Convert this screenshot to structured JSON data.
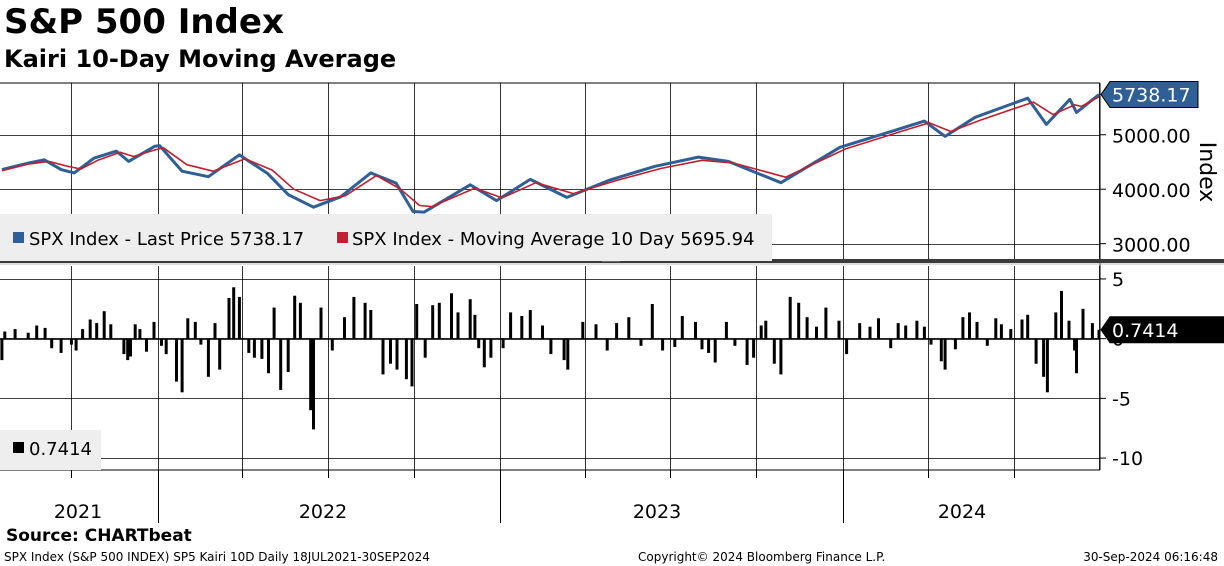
{
  "title": "S&P 500 Index",
  "subtitle": "Kairi 10-Day Moving Average",
  "source": "Source: CHARTbeat",
  "footer": {
    "left": "SPX Index (S&P 500 INDEX) SP5 Kairi 10D  Daily 18JUL2021-30SEP2024",
    "middle": "Copyright© 2024 Bloomberg Finance L.P.",
    "right": "30-Sep-2024 06:16:48"
  },
  "colors": {
    "last_price": "#2e5f96",
    "moving_average": "#c21f2f",
    "kairi": "#000000",
    "grid": "#000000",
    "legend_bg": "#eeeeee"
  },
  "chart_data": [
    {
      "type": "line",
      "panel": "price",
      "ylabel": "Index",
      "ylim": [
        2700,
        5950
      ],
      "yticks": [
        3000,
        4000,
        5000
      ],
      "ytick_labels": [
        "3000.00",
        "4000.00",
        "5000.00"
      ],
      "last_value_label": "5738.17",
      "legend": [
        "SPX Index - Last Price 5738.17",
        "SPX Index - Moving Average 10 Day 5695.94"
      ],
      "x_range": [
        "2021-07-18",
        "2024-09-30"
      ],
      "x_year_labels": [
        "2021",
        "2022",
        "2023",
        "2024"
      ],
      "series": [
        {
          "name": "SPX Index - Last Price",
          "points": [
            [
              "2021-07-19",
              4360
            ],
            [
              "2021-08-16",
              4480
            ],
            [
              "2021-09-02",
              4540
            ],
            [
              "2021-09-20",
              4360
            ],
            [
              "2021-10-04",
              4300
            ],
            [
              "2021-10-25",
              4570
            ],
            [
              "2021-11-18",
              4700
            ],
            [
              "2021-12-01",
              4510
            ],
            [
              "2021-12-29",
              4790
            ],
            [
              "2022-01-03",
              4800
            ],
            [
              "2022-01-27",
              4330
            ],
            [
              "2022-02-24",
              4230
            ],
            [
              "2022-03-29",
              4630
            ],
            [
              "2022-04-28",
              4290
            ],
            [
              "2022-05-20",
              3900
            ],
            [
              "2022-06-16",
              3670
            ],
            [
              "2022-07-15",
              3860
            ],
            [
              "2022-08-16",
              4300
            ],
            [
              "2022-09-12",
              4110
            ],
            [
              "2022-09-30",
              3590
            ],
            [
              "2022-10-12",
              3580
            ],
            [
              "2022-11-30",
              4080
            ],
            [
              "2022-12-28",
              3790
            ],
            [
              "2023-02-02",
              4180
            ],
            [
              "2023-03-13",
              3850
            ],
            [
              "2023-04-28",
              4170
            ],
            [
              "2023-06-15",
              4420
            ],
            [
              "2023-07-31",
              4590
            ],
            [
              "2023-09-01",
              4510
            ],
            [
              "2023-10-27",
              4120
            ],
            [
              "2023-12-29",
              4770
            ],
            [
              "2024-02-29",
              5100
            ],
            [
              "2024-03-28",
              5250
            ],
            [
              "2024-04-19",
              4970
            ],
            [
              "2024-05-21",
              5320
            ],
            [
              "2024-07-16",
              5670
            ],
            [
              "2024-08-05",
              5190
            ],
            [
              "2024-08-30",
              5650
            ],
            [
              "2024-09-06",
              5410
            ],
            [
              "2024-09-30",
              5738.17
            ]
          ]
        },
        {
          "name": "SPX Index - Moving Average 10 Day",
          "points": [
            [
              "2021-07-19",
              4340
            ],
            [
              "2021-08-16",
              4460
            ],
            [
              "2021-09-07",
              4510
            ],
            [
              "2021-09-27",
              4420
            ],
            [
              "2021-10-11",
              4370
            ],
            [
              "2021-10-29",
              4530
            ],
            [
              "2021-11-22",
              4680
            ],
            [
              "2021-12-06",
              4600
            ],
            [
              "2021-12-31",
              4730
            ],
            [
              "2022-01-07",
              4760
            ],
            [
              "2022-02-01",
              4450
            ],
            [
              "2022-03-01",
              4330
            ],
            [
              "2022-04-04",
              4560
            ],
            [
              "2022-05-03",
              4350
            ],
            [
              "2022-05-26",
              4000
            ],
            [
              "2022-06-23",
              3790
            ],
            [
              "2022-07-20",
              3880
            ],
            [
              "2022-08-22",
              4250
            ],
            [
              "2022-09-16",
              4010
            ],
            [
              "2022-10-07",
              3700
            ],
            [
              "2022-10-20",
              3680
            ],
            [
              "2022-12-05",
              4020
            ],
            [
              "2023-01-03",
              3840
            ],
            [
              "2023-02-08",
              4120
            ],
            [
              "2023-03-20",
              3920
            ],
            [
              "2023-05-03",
              4150
            ],
            [
              "2023-06-21",
              4380
            ],
            [
              "2023-08-04",
              4530
            ],
            [
              "2023-09-07",
              4480
            ],
            [
              "2023-11-01",
              4220
            ],
            [
              "2024-01-04",
              4740
            ],
            [
              "2024-03-05",
              5070
            ],
            [
              "2024-04-02",
              5220
            ],
            [
              "2024-04-25",
              5060
            ],
            [
              "2024-05-27",
              5270
            ],
            [
              "2024-07-22",
              5600
            ],
            [
              "2024-08-12",
              5370
            ],
            [
              "2024-09-04",
              5550
            ],
            [
              "2024-09-11",
              5520
            ],
            [
              "2024-09-30",
              5695.94
            ]
          ]
        }
      ]
    },
    {
      "type": "bar",
      "panel": "kairi",
      "ylim": [
        -11,
        6
      ],
      "yticks": [
        -10,
        -5,
        0,
        5
      ],
      "ytick_labels": [
        "-10",
        "-5",
        "0",
        "5"
      ],
      "last_value_label": "0.7414",
      "legend": [
        "0.7414"
      ],
      "series": [
        {
          "name": "Kairi 10D",
          "points": [
            [
              "2021-07-19",
              -1.8
            ],
            [
              "2021-07-22",
              0.6
            ],
            [
              "2021-08-02",
              0.8
            ],
            [
              "2021-08-16",
              0.5
            ],
            [
              "2021-08-25",
              1.1
            ],
            [
              "2021-09-03",
              0.9
            ],
            [
              "2021-09-10",
              -0.8
            ],
            [
              "2021-09-20",
              -1.2
            ],
            [
              "2021-10-01",
              -0.5
            ],
            [
              "2021-10-06",
              -1.0
            ],
            [
              "2021-10-13",
              0.8
            ],
            [
              "2021-10-21",
              1.6
            ],
            [
              "2021-10-28",
              1.3
            ],
            [
              "2021-11-05",
              2.3
            ],
            [
              "2021-11-12",
              1.2
            ],
            [
              "2021-11-26",
              -1.3
            ],
            [
              "2021-11-30",
              -1.8
            ],
            [
              "2021-12-03",
              -1.5
            ],
            [
              "2021-12-08",
              1.2
            ],
            [
              "2021-12-13",
              0.8
            ],
            [
              "2021-12-20",
              -1.1
            ],
            [
              "2021-12-28",
              1.4
            ],
            [
              "2022-01-05",
              -0.6
            ],
            [
              "2022-01-10",
              -1.3
            ],
            [
              "2022-01-21",
              -3.6
            ],
            [
              "2022-01-27",
              -4.5
            ],
            [
              "2022-02-02",
              1.7
            ],
            [
              "2022-02-10",
              1.4
            ],
            [
              "2022-02-16",
              -0.5
            ],
            [
              "2022-02-24",
              -3.2
            ],
            [
              "2022-03-03",
              1.3
            ],
            [
              "2022-03-08",
              -2.6
            ],
            [
              "2022-03-18",
              3.4
            ],
            [
              "2022-03-23",
              4.3
            ],
            [
              "2022-03-29",
              3.5
            ],
            [
              "2022-04-08",
              -1.2
            ],
            [
              "2022-04-14",
              -1.6
            ],
            [
              "2022-04-22",
              -1.7
            ],
            [
              "2022-04-29",
              -2.9
            ],
            [
              "2022-05-05",
              2.6
            ],
            [
              "2022-05-12",
              -4.3
            ],
            [
              "2022-05-20",
              -2.8
            ],
            [
              "2022-05-27",
              3.6
            ],
            [
              "2022-06-02",
              3.0
            ],
            [
              "2022-06-13",
              -6.0
            ],
            [
              "2022-06-16",
              -7.6
            ],
            [
              "2022-06-24",
              2.6
            ],
            [
              "2022-07-06",
              -1.0
            ],
            [
              "2022-07-19",
              1.8
            ],
            [
              "2022-07-29",
              3.5
            ],
            [
              "2022-08-10",
              3.0
            ],
            [
              "2022-08-16",
              2.4
            ],
            [
              "2022-08-29",
              -3.0
            ],
            [
              "2022-09-06",
              -2.1
            ],
            [
              "2022-09-13",
              -2.6
            ],
            [
              "2022-09-23",
              -3.4
            ],
            [
              "2022-09-29",
              -4.0
            ],
            [
              "2022-10-04",
              2.9
            ],
            [
              "2022-10-13",
              -1.6
            ],
            [
              "2022-10-21",
              2.8
            ],
            [
              "2022-10-28",
              3.0
            ],
            [
              "2022-11-10",
              3.8
            ],
            [
              "2022-11-17",
              2.2
            ],
            [
              "2022-11-30",
              3.3
            ],
            [
              "2022-12-05",
              2.0
            ],
            [
              "2022-12-09",
              -0.8
            ],
            [
              "2022-12-15",
              -2.4
            ],
            [
              "2022-12-22",
              -1.6
            ],
            [
              "2023-01-04",
              -0.8
            ],
            [
              "2023-01-12",
              2.2
            ],
            [
              "2023-01-24",
              1.9
            ],
            [
              "2023-02-02",
              2.4
            ],
            [
              "2023-02-15",
              1.1
            ],
            [
              "2023-02-24",
              -1.3
            ],
            [
              "2023-03-10",
              -1.8
            ],
            [
              "2023-03-14",
              -2.6
            ],
            [
              "2023-03-30",
              1.4
            ],
            [
              "2023-04-13",
              1.2
            ],
            [
              "2023-04-25",
              -1.0
            ],
            [
              "2023-05-05",
              1.3
            ],
            [
              "2023-05-18",
              1.8
            ],
            [
              "2023-05-31",
              -0.6
            ],
            [
              "2023-06-12",
              2.9
            ],
            [
              "2023-06-23",
              -1.0
            ],
            [
              "2023-07-06",
              -0.7
            ],
            [
              "2023-07-14",
              1.9
            ],
            [
              "2023-07-28",
              1.4
            ],
            [
              "2023-08-04",
              -0.9
            ],
            [
              "2023-08-11",
              -1.2
            ],
            [
              "2023-08-18",
              -2.0
            ],
            [
              "2023-08-30",
              1.4
            ],
            [
              "2023-09-08",
              -0.6
            ],
            [
              "2023-09-21",
              -2.2
            ],
            [
              "2023-09-28",
              -1.6
            ],
            [
              "2023-10-06",
              1.1
            ],
            [
              "2023-10-11",
              1.5
            ],
            [
              "2023-10-20",
              -2.1
            ],
            [
              "2023-10-27",
              -3.0
            ],
            [
              "2023-11-06",
              3.5
            ],
            [
              "2023-11-15",
              3.0
            ],
            [
              "2023-11-24",
              1.8
            ],
            [
              "2023-12-04",
              1.0
            ],
            [
              "2023-12-14",
              2.6
            ],
            [
              "2023-12-28",
              1.5
            ],
            [
              "2024-01-05",
              -1.3
            ],
            [
              "2024-01-19",
              1.3
            ],
            [
              "2024-01-30",
              1.0
            ],
            [
              "2024-02-08",
              1.7
            ],
            [
              "2024-02-21",
              -0.8
            ],
            [
              "2024-02-29",
              1.3
            ],
            [
              "2024-03-08",
              1.1
            ],
            [
              "2024-03-20",
              1.5
            ],
            [
              "2024-03-28",
              1.0
            ],
            [
              "2024-04-04",
              -0.5
            ],
            [
              "2024-04-15",
              -1.9
            ],
            [
              "2024-04-19",
              -2.6
            ],
            [
              "2024-04-30",
              -0.9
            ],
            [
              "2024-05-08",
              1.8
            ],
            [
              "2024-05-15",
              2.2
            ],
            [
              "2024-05-23",
              1.4
            ],
            [
              "2024-06-03",
              -0.6
            ],
            [
              "2024-06-12",
              1.7
            ],
            [
              "2024-06-18",
              1.2
            ],
            [
              "2024-06-28",
              0.8
            ],
            [
              "2024-07-10",
              1.6
            ],
            [
              "2024-07-16",
              2.0
            ],
            [
              "2024-07-25",
              -2.1
            ],
            [
              "2024-08-02",
              -3.2
            ],
            [
              "2024-08-06",
              -4.5
            ],
            [
              "2024-08-15",
              2.2
            ],
            [
              "2024-08-21",
              4.0
            ],
            [
              "2024-08-29",
              1.5
            ],
            [
              "2024-09-04",
              -1.0
            ],
            [
              "2024-09-06",
              -2.9
            ],
            [
              "2024-09-13",
              2.5
            ],
            [
              "2024-09-23",
              1.3
            ],
            [
              "2024-09-30",
              0.7414
            ]
          ]
        }
      ]
    }
  ]
}
